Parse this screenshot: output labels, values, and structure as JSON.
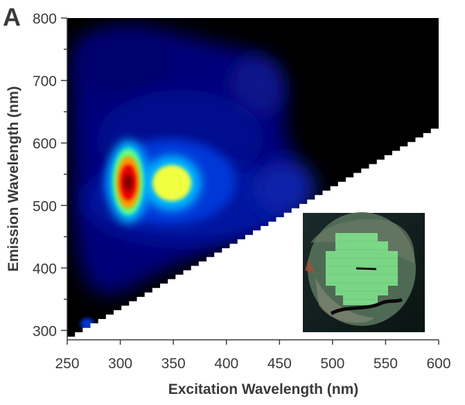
{
  "panel_label": "A",
  "chart_data": {
    "type": "heatmap",
    "title": "",
    "xlabel": "Excitation Wavelength (nm)",
    "ylabel": "Emission Wavelength (nm)",
    "xlim": [
      250,
      600
    ],
    "ylim": [
      285,
      800
    ],
    "xticks": [
      250,
      300,
      350,
      400,
      450,
      500,
      550,
      600
    ],
    "yticks": [
      300,
      400,
      500,
      600,
      700,
      800
    ],
    "colormap": [
      "#000000",
      "#00007a",
      "#0030d0",
      "#00b4ff",
      "#ffff40",
      "#ff9000",
      "#e00000",
      "#700000"
    ],
    "masked_region": "emission below excitation (white, stepped diagonal from (250,290) to (600,630))",
    "peaks": [
      {
        "excitation": 310,
        "emission": 540,
        "intensity": 1.0
      },
      {
        "excitation": 350,
        "emission": 537,
        "intensity": 0.62
      },
      {
        "excitation": 420,
        "emission": 540,
        "intensity": 0.22
      },
      {
        "excitation": 270,
        "emission": 312,
        "intensity": 0.28
      }
    ],
    "inset": "photograph: round sample with green checkerboard-like pattern on dark background",
    "grid": false
  }
}
